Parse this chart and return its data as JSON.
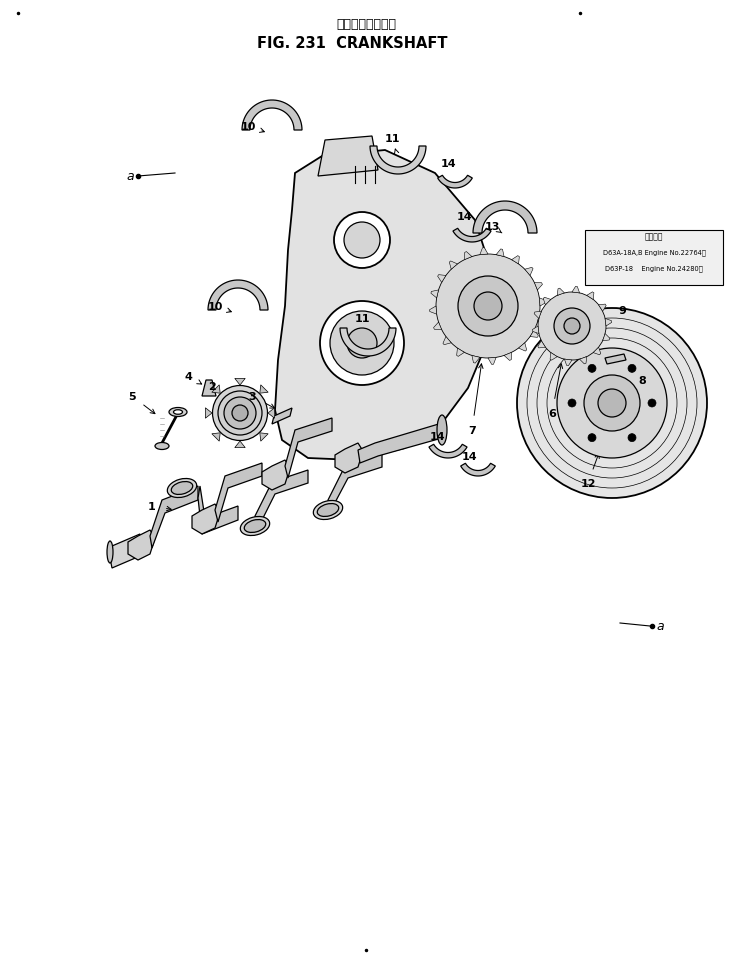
{
  "title_japanese": "クランクシャフト",
  "title_english": "FIG. 231  CRANKSHAFT",
  "bg_color": "#ffffff",
  "fig_width": 7.32,
  "fig_height": 9.79,
  "dpi": 100,
  "note_lines": [
    "適用年鑑",
    "D63A-18A,B Engine No.22764～",
    "D63P-18    Engine No.24280～"
  ]
}
